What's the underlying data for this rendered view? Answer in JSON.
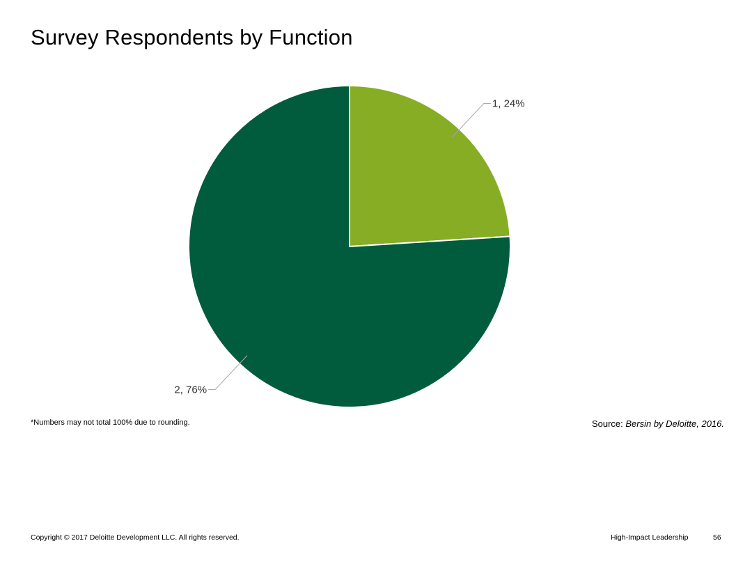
{
  "page": {
    "title": "Survey Respondents by Function",
    "footnote": "*Numbers may not total 100% due to rounding.",
    "source_prefix": "Source: ",
    "source_citation": "Bersin by Deloitte, 2016.",
    "copyright": "Copyright © 2017 Deloitte Development LLC. All rights reserved.",
    "deck_name": "High-Impact Leadership",
    "page_number": "56"
  },
  "chart_data": {
    "type": "pie",
    "slices": [
      {
        "category": "1",
        "value": 24,
        "label": "1, 24%",
        "color": "#86ad24"
      },
      {
        "category": "2",
        "value": 76,
        "label": "2, 76%",
        "color": "#005c3c"
      }
    ],
    "start_angle": "12 o'clock",
    "direction": "clockwise",
    "data_labels": "outside with leader lines",
    "legend": "none"
  }
}
